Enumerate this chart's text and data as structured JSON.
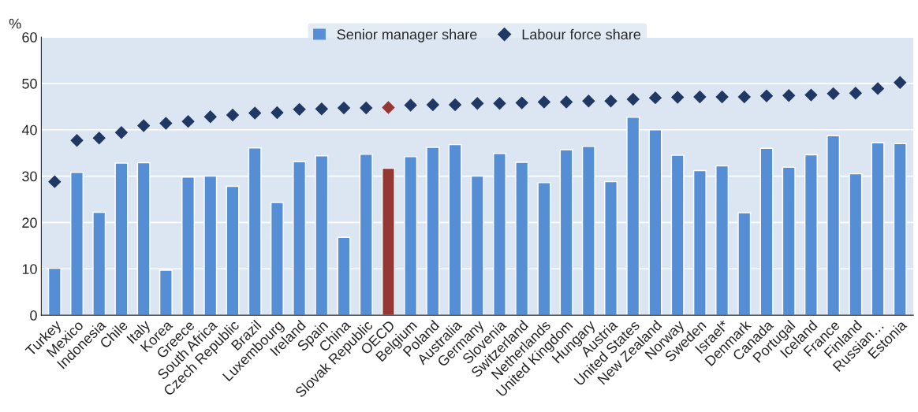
{
  "chart_data": {
    "type": "bar",
    "ylabel": "%",
    "categories": [
      "Turkey",
      "Mexico",
      "Indonesia",
      "Chile",
      "Italy",
      "Korea",
      "Greece",
      "South Africa",
      "Czech Republic",
      "Brazil",
      "Luxembourg",
      "Ireland",
      "Spain",
      "China",
      "Slovak Republic",
      "OECD",
      "Belgium",
      "Poland",
      "Australia",
      "Germany",
      "Slovenia",
      "Switzerland",
      "Netherlands",
      "United Kingdom",
      "Hungary",
      "Austria",
      "United States",
      "New Zealand",
      "Norway",
      "Sweden",
      "Israel*",
      "Denmark",
      "Canada",
      "Portugal",
      "Iceland",
      "France",
      "Finland",
      "Russian…",
      "Estonia"
    ],
    "series": [
      {
        "name": "Senior manager share",
        "color": "#558ed5",
        "colors": [
          "#558ed5",
          "#558ed5",
          "#558ed5",
          "#558ed5",
          "#558ed5",
          "#558ed5",
          "#558ed5",
          "#558ed5",
          "#558ed5",
          "#558ed5",
          "#558ed5",
          "#558ed5",
          "#558ed5",
          "#558ed5",
          "#558ed5",
          "#953735",
          "#558ed5",
          "#558ed5",
          "#558ed5",
          "#558ed5",
          "#558ed5",
          "#558ed5",
          "#558ed5",
          "#558ed5",
          "#558ed5",
          "#558ed5",
          "#558ed5",
          "#558ed5",
          "#558ed5",
          "#558ed5",
          "#558ed5",
          "#558ed5",
          "#558ed5",
          "#558ed5",
          "#558ed5",
          "#558ed5",
          "#558ed5",
          "#558ed5",
          "#558ed5"
        ],
        "values": [
          10.1,
          30.8,
          22.2,
          32.8,
          32.9,
          9.7,
          29.8,
          30.0,
          27.8,
          36.1,
          24.3,
          33.1,
          34.4,
          16.8,
          34.7,
          31.7,
          34.2,
          36.2,
          36.8,
          30.0,
          34.9,
          33.0,
          28.6,
          35.7,
          36.4,
          28.8,
          42.7,
          40.0,
          34.5,
          31.2,
          32.2,
          22.1,
          36.0,
          31.9,
          34.6,
          38.7,
          30.5,
          37.2,
          37.0
        ]
      },
      {
        "name": "Labour force share",
        "type": "scatter",
        "marker": "diamond",
        "color": "#1f3864",
        "colors": [
          "#1f3864",
          "#1f3864",
          "#1f3864",
          "#1f3864",
          "#1f3864",
          "#1f3864",
          "#1f3864",
          "#1f3864",
          "#1f3864",
          "#1f3864",
          "#1f3864",
          "#1f3864",
          "#1f3864",
          "#1f3864",
          "#1f3864",
          "#953735",
          "#1f3864",
          "#1f3864",
          "#1f3864",
          "#1f3864",
          "#1f3864",
          "#1f3864",
          "#1f3864",
          "#1f3864",
          "#1f3864",
          "#1f3864",
          "#1f3864",
          "#1f3864",
          "#1f3864",
          "#1f3864",
          "#1f3864",
          "#1f3864",
          "#1f3864",
          "#1f3864",
          "#1f3864",
          "#1f3864",
          "#1f3864",
          "#1f3864",
          "#1f3864"
        ],
        "values": [
          28.8,
          37.7,
          38.2,
          39.4,
          40.9,
          41.4,
          41.8,
          42.8,
          43.2,
          43.6,
          43.7,
          44.4,
          44.5,
          44.7,
          44.7,
          44.8,
          45.3,
          45.4,
          45.4,
          45.7,
          45.7,
          45.8,
          46.0,
          46.0,
          46.2,
          46.2,
          46.6,
          46.9,
          47.0,
          47.1,
          47.1,
          47.1,
          47.3,
          47.4,
          47.5,
          47.8,
          47.9,
          48.9,
          50.2
        ]
      }
    ],
    "ylim": [
      0,
      60
    ],
    "yticks": [
      0,
      10,
      20,
      30,
      40,
      50,
      60
    ],
    "grid": "y",
    "legend": "top"
  }
}
